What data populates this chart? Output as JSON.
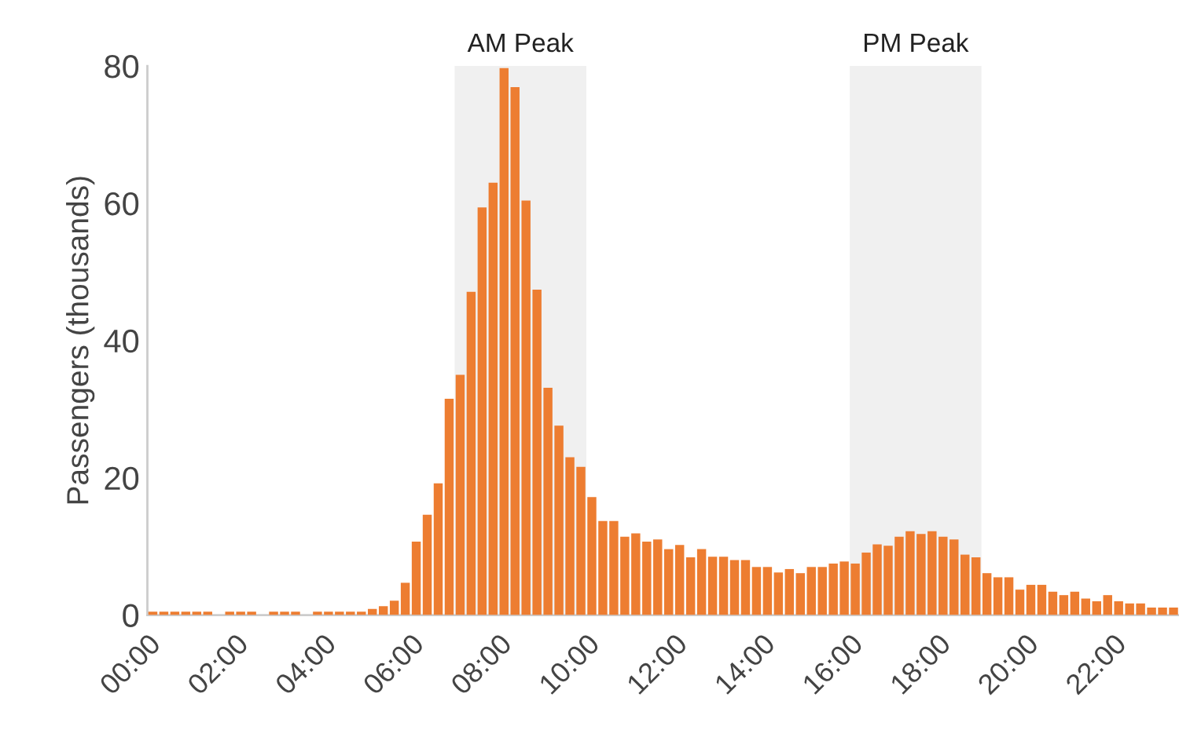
{
  "chart_data": {
    "type": "bar",
    "ylabel": "Passengers (thousands)",
    "x": [
      0,
      0.25,
      0.5,
      0.75,
      1,
      1.25,
      1.5,
      1.75,
      2,
      2.25,
      2.5,
      2.75,
      3,
      3.25,
      3.5,
      3.75,
      4,
      4.25,
      4.5,
      4.75,
      5,
      5.25,
      5.5,
      5.75,
      6,
      6.25,
      6.5,
      6.75,
      7,
      7.25,
      7.5,
      7.75,
      8,
      8.25,
      8.5,
      8.75,
      9,
      9.25,
      9.5,
      9.75,
      10,
      10.25,
      10.5,
      10.75,
      11,
      11.25,
      11.5,
      11.75,
      12,
      12.25,
      12.5,
      12.75,
      13,
      13.25,
      13.5,
      13.75,
      14,
      14.25,
      14.5,
      14.75,
      15,
      15.25,
      15.5,
      15.75,
      16,
      16.25,
      16.5,
      16.75,
      17,
      17.25,
      17.5,
      17.75,
      18,
      18.25,
      18.5,
      18.75,
      19,
      19.25,
      19.5,
      19.75,
      20,
      20.25,
      20.5,
      20.75,
      21,
      21.25,
      21.5,
      21.75,
      22,
      22.25,
      22.5,
      22.75,
      23,
      23.25
    ],
    "values": [
      0.5,
      0.5,
      0.5,
      0.5,
      0.5,
      0.5,
      0,
      0.5,
      0.5,
      0.5,
      0,
      0.5,
      0.5,
      0.5,
      0,
      0.5,
      0.5,
      0.5,
      0.5,
      0.5,
      0.9,
      1.3,
      2.1,
      4.7,
      10.7,
      14.6,
      19.2,
      31.5,
      35,
      47.1,
      59.4,
      63,
      79.7,
      76.9,
      60.4,
      47.4,
      33.1,
      27.6,
      23,
      21.6,
      17.2,
      13.7,
      13.7,
      11.4,
      11.9,
      10.7,
      11,
      9.6,
      10.2,
      8.4,
      9.6,
      8.5,
      8.5,
      8,
      8,
      7,
      7,
      6.2,
      6.7,
      6.1,
      7,
      7,
      7.5,
      7.8,
      7.5,
      9.1,
      10.3,
      10.1,
      11.4,
      12.2,
      11.8,
      12.2,
      11.4,
      11,
      8.8,
      8.4,
      6.1,
      5.5,
      5.5,
      3.7,
      4.4,
      4.4,
      3.4,
      2.9,
      3.4,
      2.4,
      2,
      2.9,
      2,
      1.7,
      1.7,
      1.1,
      1.1,
      1.1
    ],
    "color": "#ed7d31",
    "xlim": [
      0,
      23.5
    ],
    "xticks": [
      {
        "value": 0,
        "label": "00:00"
      },
      {
        "value": 2,
        "label": "02:00"
      },
      {
        "value": 4,
        "label": "04:00"
      },
      {
        "value": 6,
        "label": "06:00"
      },
      {
        "value": 8,
        "label": "08:00"
      },
      {
        "value": 10,
        "label": "10:00"
      },
      {
        "value": 12,
        "label": "12:00"
      },
      {
        "value": 14,
        "label": "14:00"
      },
      {
        "value": 16,
        "label": "16:00"
      },
      {
        "value": 18,
        "label": "18:00"
      },
      {
        "value": 20,
        "label": "20:00"
      },
      {
        "value": 22,
        "label": "22:00"
      }
    ],
    "ylim": [
      0,
      80
    ],
    "yticks": [
      0,
      20,
      40,
      60,
      80
    ],
    "bands": [
      {
        "axis": "x",
        "from": 7,
        "to": 10,
        "label": "AM Peak",
        "color": "#f0f0f0"
      },
      {
        "axis": "x",
        "from": 16,
        "to": 19,
        "label": "PM Peak",
        "color": "#f0f0f0"
      }
    ],
    "grid": false
  }
}
